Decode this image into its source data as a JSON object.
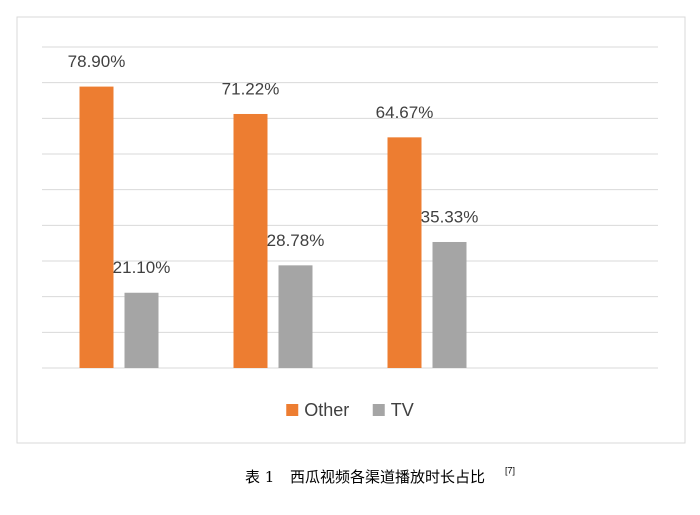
{
  "chart_data": {
    "type": "bar",
    "categories": [
      null,
      null,
      null,
      null
    ],
    "series": [
      {
        "name": "Other",
        "color": "#ed7d31",
        "values": [
          78.9,
          71.22,
          64.67,
          null
        ],
        "value_labels": [
          "78.90%",
          "71.22%",
          "64.67%",
          null
        ]
      },
      {
        "name": "TV",
        "color": "#a5a5a5",
        "values": [
          21.1,
          28.78,
          35.33,
          null
        ],
        "value_labels": [
          "21.10%",
          "28.78%",
          "35.33%",
          null
        ]
      }
    ],
    "ylim": [
      0,
      90
    ],
    "yticks": [
      0,
      10,
      20,
      30,
      40,
      50,
      60,
      70,
      80,
      90
    ],
    "ytick_labels": false,
    "grid": true,
    "legend": "bottom"
  },
  "caption": {
    "label": "表 1",
    "text": "西瓜视频各渠道播放时长占比",
    "ref": "[7]"
  }
}
